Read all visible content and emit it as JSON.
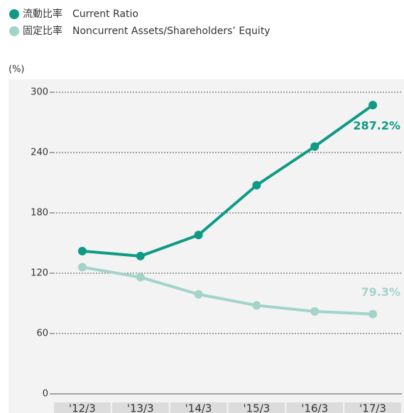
{
  "chart_data": {
    "type": "line",
    "y_label": "(%)",
    "categories": [
      "'12/3",
      "'13/3",
      "'14/3",
      "'15/3",
      "'16/3",
      "'17/3"
    ],
    "series": [
      {
        "name": "流動比率　Current Ratio",
        "color": "#0f9a85",
        "values": [
          142,
          137,
          158,
          207.5,
          246,
          287.2
        ],
        "value_labels": [
          null,
          null,
          null,
          null,
          null,
          "287.2%"
        ]
      },
      {
        "name": "固定比率　Noncurrent Assets/Shareholders’ Equity",
        "color": "#a3d4c9",
        "values": [
          126,
          116,
          99,
          88,
          82,
          79.3
        ],
        "value_labels": [
          null,
          null,
          null,
          null,
          null,
          "79.3%"
        ]
      }
    ],
    "ylim": [
      0,
      300
    ],
    "yticks": [
      0,
      60,
      120,
      180,
      240,
      300
    ],
    "grid": true
  }
}
